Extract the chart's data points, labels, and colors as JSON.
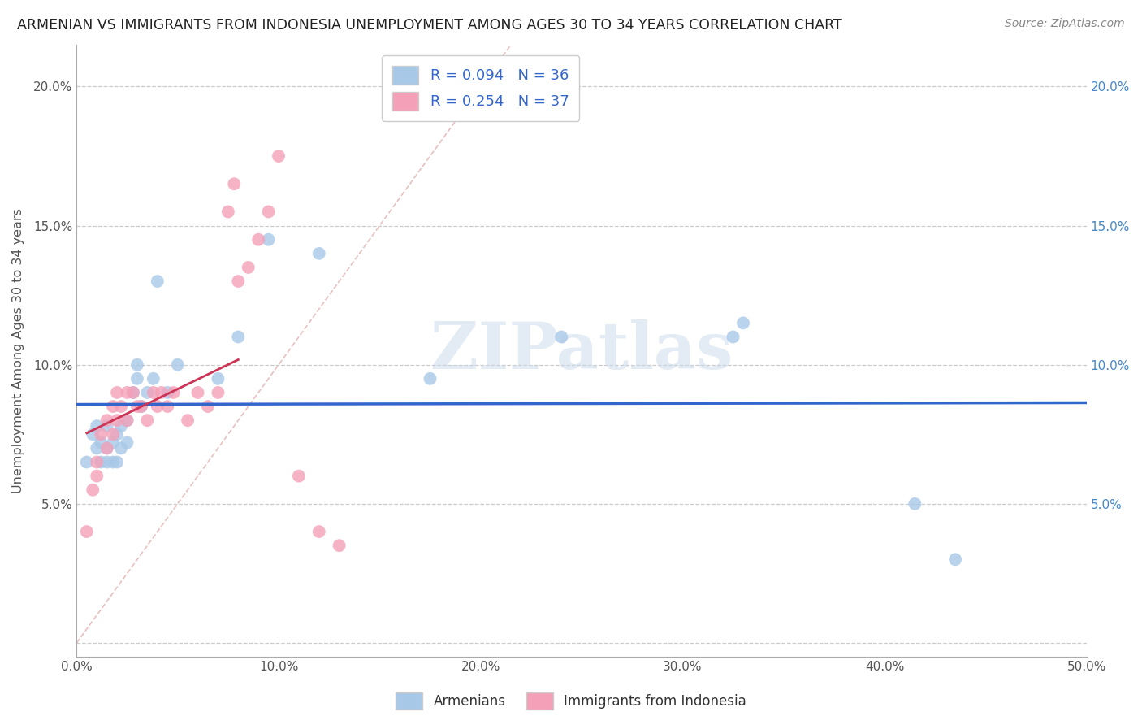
{
  "title": "ARMENIAN VS IMMIGRANTS FROM INDONESIA UNEMPLOYMENT AMONG AGES 30 TO 34 YEARS CORRELATION CHART",
  "source": "Source: ZipAtlas.com",
  "ylabel": "Unemployment Among Ages 30 to 34 years",
  "xlim": [
    0.0,
    0.5
  ],
  "ylim": [
    -0.005,
    0.215
  ],
  "xticks": [
    0.0,
    0.1,
    0.2,
    0.3,
    0.4,
    0.5
  ],
  "xticklabels": [
    "0.0%",
    "10.0%",
    "20.0%",
    "30.0%",
    "40.0%",
    "50.0%"
  ],
  "yticks": [
    0.0,
    0.05,
    0.1,
    0.15,
    0.2
  ],
  "yticklabels": [
    "",
    "5.0%",
    "10.0%",
    "15.0%",
    "20.0%"
  ],
  "armenian_R": 0.094,
  "armenian_N": 36,
  "indonesia_R": 0.254,
  "indonesia_N": 37,
  "armenian_color": "#a8c8e8",
  "indonesia_color": "#f4a0b8",
  "armenian_line_color": "#3366cc",
  "indonesia_line_color": "#cc3355",
  "diagonal_color": "#ddbbbb",
  "watermark": "ZIPatlas",
  "armenian_scatter_x": [
    0.005,
    0.008,
    0.01,
    0.01,
    0.012,
    0.012,
    0.015,
    0.015,
    0.015,
    0.018,
    0.018,
    0.02,
    0.02,
    0.022,
    0.022,
    0.025,
    0.025,
    0.028,
    0.03,
    0.03,
    0.032,
    0.035,
    0.038,
    0.04,
    0.045,
    0.05,
    0.07,
    0.08,
    0.095,
    0.12,
    0.175,
    0.24,
    0.325,
    0.33,
    0.415,
    0.435
  ],
  "armenian_scatter_y": [
    0.065,
    0.075,
    0.07,
    0.078,
    0.065,
    0.072,
    0.065,
    0.07,
    0.078,
    0.065,
    0.072,
    0.065,
    0.075,
    0.07,
    0.078,
    0.072,
    0.08,
    0.09,
    0.095,
    0.1,
    0.085,
    0.09,
    0.095,
    0.13,
    0.09,
    0.1,
    0.095,
    0.11,
    0.145,
    0.14,
    0.095,
    0.11,
    0.11,
    0.115,
    0.05,
    0.03
  ],
  "indonesia_scatter_x": [
    0.005,
    0.008,
    0.01,
    0.01,
    0.012,
    0.015,
    0.015,
    0.018,
    0.018,
    0.02,
    0.02,
    0.022,
    0.025,
    0.025,
    0.028,
    0.03,
    0.032,
    0.035,
    0.038,
    0.04,
    0.042,
    0.045,
    0.048,
    0.055,
    0.06,
    0.065,
    0.07,
    0.075,
    0.078,
    0.08,
    0.085,
    0.09,
    0.095,
    0.1,
    0.11,
    0.12,
    0.13
  ],
  "indonesia_scatter_y": [
    0.04,
    0.055,
    0.06,
    0.065,
    0.075,
    0.07,
    0.08,
    0.075,
    0.085,
    0.08,
    0.09,
    0.085,
    0.08,
    0.09,
    0.09,
    0.085,
    0.085,
    0.08,
    0.09,
    0.085,
    0.09,
    0.085,
    0.09,
    0.08,
    0.09,
    0.085,
    0.09,
    0.155,
    0.165,
    0.13,
    0.135,
    0.145,
    0.155,
    0.175,
    0.06,
    0.04,
    0.035
  ]
}
